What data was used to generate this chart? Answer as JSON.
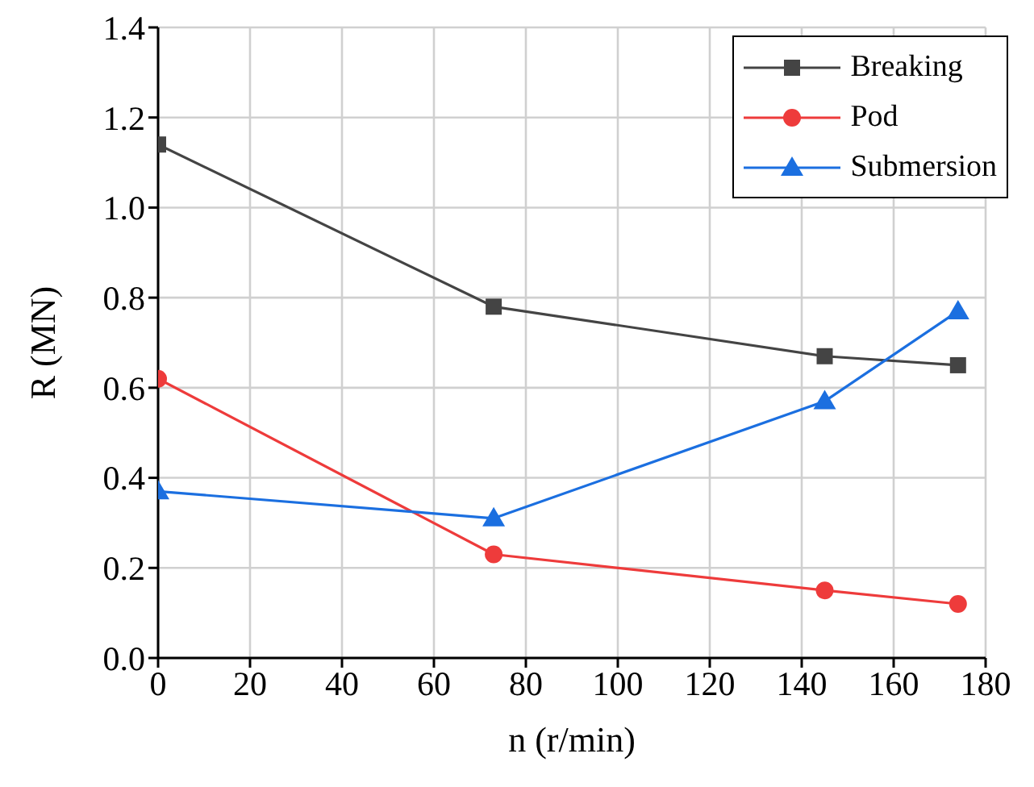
{
  "chart_data": {
    "type": "line",
    "xlabel": "n (r/min)",
    "ylabel": "R (MN)",
    "x": [
      0,
      73,
      145,
      174
    ],
    "series": [
      {
        "name": "Breaking",
        "color": "#444444",
        "marker": "square",
        "values": [
          1.14,
          0.78,
          0.67,
          0.65
        ]
      },
      {
        "name": "Pod",
        "color": "#ee3b3b",
        "marker": "circle",
        "values": [
          0.62,
          0.23,
          0.15,
          0.12
        ]
      },
      {
        "name": "Submersion",
        "color": "#1b6fe0",
        "marker": "triangle",
        "values": [
          0.37,
          0.31,
          0.57,
          0.77
        ]
      }
    ],
    "xlim": [
      0,
      180
    ],
    "xticks": [
      0,
      20,
      40,
      60,
      80,
      100,
      120,
      140,
      160,
      180
    ],
    "ylim": [
      0,
      1.4
    ],
    "yticks": [
      {
        "value": 0,
        "label": "0.0"
      },
      0.2,
      0.4,
      0.6,
      0.8,
      {
        "value": 1,
        "label": "1.0"
      },
      1.2,
      1.4
    ],
    "grid": true,
    "legend": "top right",
    "line_style": "solid"
  }
}
